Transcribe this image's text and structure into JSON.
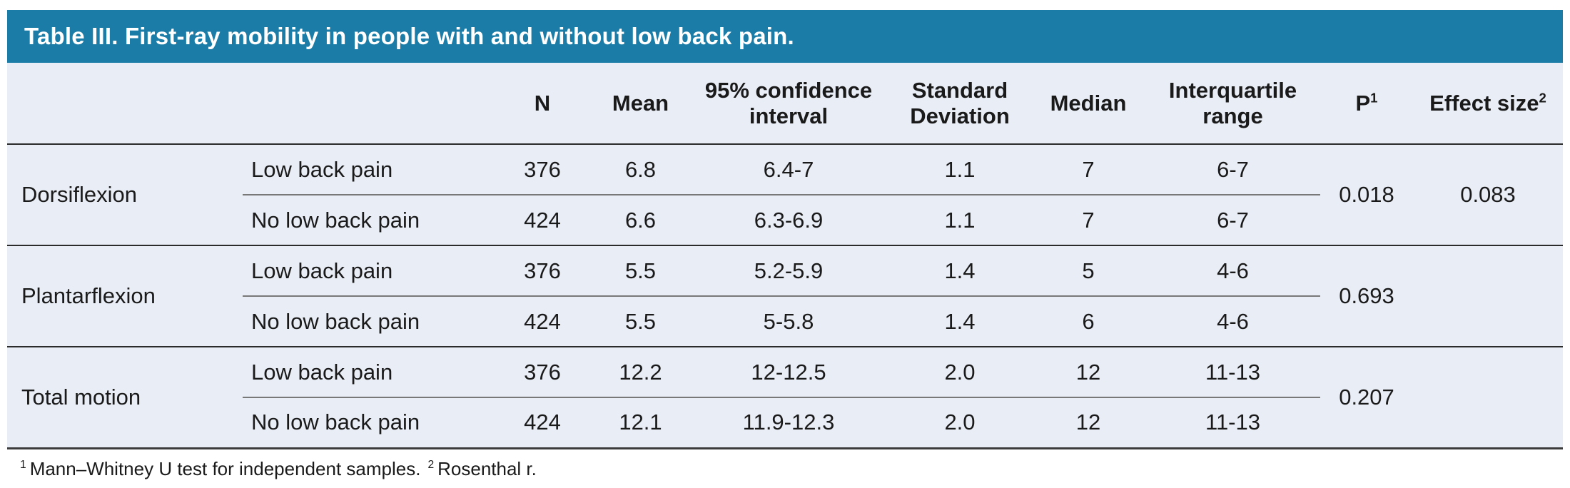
{
  "title": "Table III. First-ray mobility in people with and without low back pain.",
  "colors": {
    "header_bg": "#1b7da7",
    "header_text": "#ffffff",
    "table_bg": "#e9edf6",
    "text": "#1a1a1a"
  },
  "columns": {
    "n": "N",
    "mean": "Mean",
    "ci": "95% confidence interval",
    "sd": "Standard Deviation",
    "median": "Median",
    "iqr": "Interquartile range",
    "p": "P",
    "p_sup": "1",
    "effect": "Effect size",
    "effect_sup": "2"
  },
  "groups": [
    {
      "label": "Dorsiflexion",
      "p": "0.018",
      "effect_size": "0.083",
      "rows": [
        {
          "condition": "Low back pain",
          "n": "376",
          "mean": "6.8",
          "ci": "6.4-7",
          "sd": "1.1",
          "median": "7",
          "iqr": "6-7"
        },
        {
          "condition": "No low back pain",
          "n": "424",
          "mean": "6.6",
          "ci": "6.3-6.9",
          "sd": "1.1",
          "median": "7",
          "iqr": "6-7"
        }
      ]
    },
    {
      "label": "Plantarflexion",
      "p": "0.693",
      "effect_size": "",
      "rows": [
        {
          "condition": "Low back pain",
          "n": "376",
          "mean": "5.5",
          "ci": "5.2-5.9",
          "sd": "1.4",
          "median": "5",
          "iqr": "4-6"
        },
        {
          "condition": "No low back pain",
          "n": "424",
          "mean": "5.5",
          "ci": "5-5.8",
          "sd": "1.4",
          "median": "6",
          "iqr": "4-6"
        }
      ]
    },
    {
      "label": "Total motion",
      "p": "0.207",
      "effect_size": "",
      "rows": [
        {
          "condition": "Low back pain",
          "n": "376",
          "mean": "12.2",
          "ci": "12-12.5",
          "sd": "2.0",
          "median": "12",
          "iqr": "11-13"
        },
        {
          "condition": "No low back pain",
          "n": "424",
          "mean": "12.1",
          "ci": "11.9-12.3",
          "sd": "2.0",
          "median": "12",
          "iqr": "11-13"
        }
      ]
    }
  ],
  "footnote": {
    "sup1": "1",
    "text1": "Mann–Whitney U test for independent samples.",
    "sup2": "2",
    "text2": "Rosenthal r."
  }
}
